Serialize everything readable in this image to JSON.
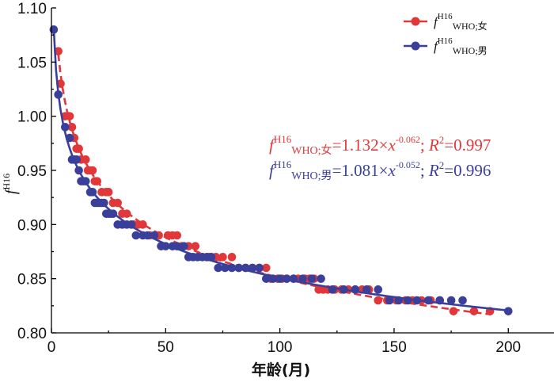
{
  "chart_data": {
    "type": "scatter",
    "title": "",
    "xlabel": "年龄(月)",
    "ylabel": {
      "base": "f",
      "sup": "H16"
    },
    "xlim": [
      0,
      220
    ],
    "ylim": [
      0.8,
      1.1
    ],
    "xticks": [
      0,
      50,
      100,
      150,
      200
    ],
    "xtick_labels": [
      "0",
      "50",
      "100",
      "150",
      "200"
    ],
    "yticks": [
      0.8,
      0.85,
      0.9,
      0.95,
      1.0,
      1.05,
      1.1
    ],
    "ytick_labels": [
      "0.80",
      "0.85",
      "0.90",
      "0.95",
      "1.00",
      "1.05",
      "1.10"
    ],
    "grid": false,
    "legend_position": "top-right",
    "series": [
      {
        "name": {
          "base": "f",
          "sup": "H16",
          "sub": "WHO;女"
        },
        "color": "#e0383a",
        "line_style": "dashed",
        "fit": {
          "a": 1.132,
          "b": -0.062
        },
        "x": [
          3,
          4,
          6,
          8,
          9,
          10,
          11,
          12,
          13,
          15,
          16,
          17,
          18,
          19,
          20,
          22,
          24,
          25,
          27,
          29,
          31,
          33,
          36,
          38,
          40,
          43,
          47,
          51,
          53,
          55,
          57,
          60,
          63,
          66,
          69,
          72,
          75,
          79,
          82,
          85,
          88,
          91,
          94,
          96,
          99,
          101,
          103,
          106,
          108,
          111,
          113,
          115,
          117,
          119,
          121,
          124,
          127,
          130,
          133,
          136,
          139,
          143,
          147,
          151,
          155,
          158,
          162,
          166,
          170,
          176,
          185,
          192
        ],
        "y": [
          1.06,
          1.03,
          1.0,
          1.0,
          0.99,
          0.98,
          0.97,
          0.97,
          0.96,
          0.96,
          0.95,
          0.95,
          0.95,
          0.94,
          0.94,
          0.93,
          0.93,
          0.93,
          0.92,
          0.92,
          0.91,
          0.91,
          0.9,
          0.9,
          0.9,
          0.89,
          0.89,
          0.89,
          0.89,
          0.89,
          0.88,
          0.88,
          0.88,
          0.87,
          0.87,
          0.87,
          0.87,
          0.87,
          0.86,
          0.86,
          0.86,
          0.86,
          0.86,
          0.85,
          0.85,
          0.85,
          0.85,
          0.85,
          0.85,
          0.85,
          0.85,
          0.85,
          0.84,
          0.84,
          0.84,
          0.84,
          0.84,
          0.84,
          0.84,
          0.84,
          0.84,
          0.83,
          0.83,
          0.83,
          0.83,
          0.83,
          0.83,
          0.83,
          0.83,
          0.82,
          0.82,
          0.82
        ]
      },
      {
        "name": {
          "base": "f",
          "sup": "H16",
          "sub": "WHO;男"
        },
        "color": "#3a3f9a",
        "line_style": "solid",
        "fit": {
          "a": 1.081,
          "b": -0.052
        },
        "x": [
          1,
          3,
          6,
          8,
          9,
          10,
          11,
          12,
          13,
          14,
          15,
          17,
          18,
          19,
          20,
          21,
          22,
          23,
          24,
          25,
          26,
          27,
          29,
          31,
          33,
          35,
          37,
          40,
          42,
          45,
          48,
          50,
          53,
          55,
          58,
          60,
          62,
          64,
          66,
          68,
          70,
          73,
          76,
          79,
          82,
          85,
          88,
          91,
          94,
          97,
          100,
          103,
          106,
          110,
          114,
          118,
          123,
          128,
          133,
          138,
          143,
          148,
          152,
          156,
          160,
          165,
          170,
          175,
          180,
          200
        ],
        "y": [
          1.08,
          1.02,
          0.99,
          0.98,
          0.96,
          0.96,
          0.96,
          0.95,
          0.94,
          0.94,
          0.94,
          0.93,
          0.93,
          0.92,
          0.92,
          0.92,
          0.92,
          0.92,
          0.91,
          0.91,
          0.91,
          0.91,
          0.9,
          0.9,
          0.9,
          0.9,
          0.89,
          0.89,
          0.89,
          0.89,
          0.88,
          0.88,
          0.88,
          0.88,
          0.88,
          0.87,
          0.87,
          0.87,
          0.87,
          0.87,
          0.87,
          0.86,
          0.86,
          0.86,
          0.86,
          0.86,
          0.86,
          0.86,
          0.85,
          0.85,
          0.85,
          0.85,
          0.85,
          0.85,
          0.85,
          0.85,
          0.84,
          0.84,
          0.84,
          0.84,
          0.84,
          0.83,
          0.83,
          0.83,
          0.83,
          0.83,
          0.83,
          0.83,
          0.83,
          0.82
        ]
      }
    ],
    "equations": [
      {
        "lhs_base": "f",
        "lhs_sup": "H16",
        "lhs_sub": "WHO;女",
        "mid": "=1.132×",
        "var": "x",
        "exp": "-0.062",
        "semi": "; ",
        "r_var": "R",
        "r_sup": "2",
        "r_val": "=0.997",
        "color": "#e0383a"
      },
      {
        "lhs_base": "f",
        "lhs_sup": "H16",
        "lhs_sub": "WHO;男",
        "mid": "=1.081×",
        "var": "x",
        "exp": "-0.052",
        "semi": "; ",
        "r_var": "R",
        "r_sup": "2",
        "r_val": "=0.996",
        "color": "#3a3f9a"
      }
    ]
  }
}
